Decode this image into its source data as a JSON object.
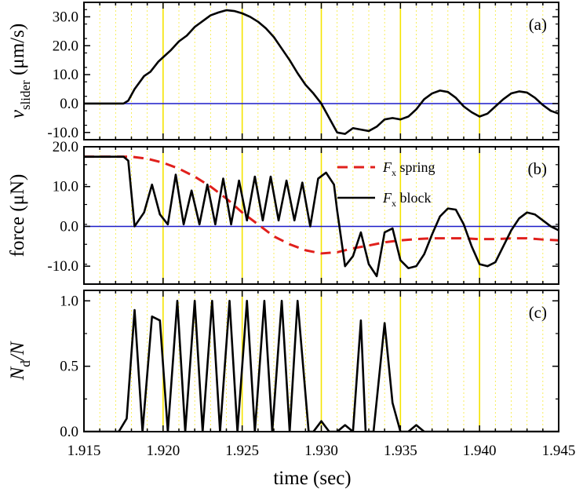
{
  "chart_data": {
    "type": "line",
    "xlabel": "time (sec)",
    "x_ticks": [
      "1.915",
      "1.920",
      "1.925",
      "1.930",
      "1.935",
      "1.940",
      "1.945"
    ],
    "xlim": [
      1.915,
      1.945
    ],
    "panels": [
      {
        "tag": "(a)",
        "ylabel": {
          "main": "v",
          "sub": "slider",
          "unit": "(μm/s)"
        },
        "ylim": [
          -12.5,
          35.0
        ],
        "y_ticks": [
          30.0,
          20.0,
          10.0,
          0.0,
          -10.0
        ],
        "y_tick_labels": [
          "30.0",
          "20.0",
          "10.0",
          "0.0",
          "-10.0"
        ],
        "zero_line": 0.0,
        "series": [
          {
            "color": "#000000",
            "style": "solid",
            "x": [
              1.915,
              1.9175,
              1.9178,
              1.9182,
              1.9188,
              1.9192,
              1.9197,
              1.92,
              1.9205,
              1.921,
              1.9215,
              1.922,
              1.9225,
              1.923,
              1.9235,
              1.924,
              1.9245,
              1.925,
              1.9255,
              1.926,
              1.9265,
              1.927,
              1.9275,
              1.928,
              1.9285,
              1.929,
              1.9295,
              1.93,
              1.9305,
              1.931,
              1.9315,
              1.932,
              1.9325,
              1.933,
              1.9335,
              1.934,
              1.9345,
              1.935,
              1.9355,
              1.936,
              1.9365,
              1.937,
              1.9375,
              1.938,
              1.9385,
              1.939,
              1.9395,
              1.94,
              1.9405,
              1.941,
              1.9415,
              1.942,
              1.9425,
              1.943,
              1.9435,
              1.944,
              1.9445,
              1.945
            ],
            "y": [
              0.0,
              0.0,
              1.0,
              5.0,
              9.5,
              11.0,
              14.5,
              16.0,
              18.5,
              21.5,
              23.5,
              26.5,
              28.5,
              30.5,
              31.5,
              32.3,
              32.0,
              31.2,
              30.0,
              28.3,
              26.0,
              23.0,
              19.0,
              15.0,
              10.5,
              6.5,
              3.5,
              0.0,
              -5.0,
              -10.0,
              -10.5,
              -8.5,
              -9.0,
              -9.5,
              -8.0,
              -5.5,
              -5.0,
              -5.5,
              -4.5,
              -2.0,
              1.5,
              3.5,
              4.5,
              4.0,
              2.0,
              -1.0,
              -3.0,
              -4.5,
              -3.5,
              -1.0,
              1.5,
              3.5,
              4.2,
              3.8,
              2.0,
              -0.5,
              -2.5,
              -3.5
            ]
          }
        ]
      },
      {
        "tag": "(b)",
        "ylabel": {
          "main": "force (μN)"
        },
        "ylim": [
          -14.5,
          20.0
        ],
        "y_ticks": [
          20.0,
          10.0,
          0.0,
          -10.0
        ],
        "y_tick_labels": [
          "20.0",
          "10.0",
          "0.0",
          "-10.0"
        ],
        "zero_line": 0.0,
        "legend": [
          {
            "label_main": "F",
            "label_sub": "x",
            "label_rest": " spring",
            "color": "#e0201c",
            "style": "dashed"
          },
          {
            "label_main": "F",
            "label_sub": "x",
            "label_rest": " block",
            "color": "#000000",
            "style": "solid"
          }
        ],
        "series": [
          {
            "name": "F x spring",
            "color": "#e0201c",
            "style": "dashed",
            "x": [
              1.915,
              1.918,
              1.919,
              1.92,
              1.921,
              1.922,
              1.923,
              1.924,
              1.925,
              1.926,
              1.927,
              1.928,
              1.929,
              1.93,
              1.931,
              1.932,
              1.933,
              1.934,
              1.935,
              1.936,
              1.937,
              1.938,
              1.939,
              1.94,
              1.941,
              1.942,
              1.943,
              1.944,
              1.945
            ],
            "y": [
              17.5,
              17.5,
              17.0,
              16.0,
              14.5,
              12.5,
              10.0,
              7.0,
              3.5,
              0.5,
              -2.5,
              -4.5,
              -6.0,
              -6.8,
              -6.5,
              -5.5,
              -4.8,
              -4.0,
              -3.5,
              -3.2,
              -3.0,
              -3.0,
              -3.0,
              -3.2,
              -3.2,
              -3.0,
              -3.0,
              -3.3,
              -3.5
            ]
          },
          {
            "name": "F x block",
            "color": "#000000",
            "style": "solid",
            "x": [
              1.915,
              1.9175,
              1.9178,
              1.9182,
              1.9188,
              1.9193,
              1.9198,
              1.9203,
              1.9208,
              1.9213,
              1.9218,
              1.9223,
              1.9228,
              1.9233,
              1.9238,
              1.9243,
              1.9248,
              1.9253,
              1.9258,
              1.9263,
              1.9268,
              1.9273,
              1.9278,
              1.9283,
              1.9288,
              1.9293,
              1.9298,
              1.9303,
              1.9308,
              1.931,
              1.9315,
              1.932,
              1.9325,
              1.933,
              1.9335,
              1.934,
              1.9345,
              1.935,
              1.9355,
              1.936,
              1.9365,
              1.937,
              1.9375,
              1.938,
              1.9385,
              1.939,
              1.9395,
              1.94,
              1.9405,
              1.941,
              1.9415,
              1.942,
              1.9425,
              1.943,
              1.9435,
              1.944,
              1.9445,
              1.945
            ],
            "y": [
              17.5,
              17.5,
              16.5,
              0.0,
              3.5,
              10.5,
              3.0,
              0.5,
              13.0,
              0.5,
              9.0,
              0.5,
              10.5,
              0.5,
              12.0,
              0.5,
              11.5,
              1.5,
              12.5,
              1.5,
              12.5,
              1.5,
              11.5,
              1.5,
              11.0,
              0.0,
              12.0,
              13.5,
              10.5,
              4.0,
              -10.0,
              -7.5,
              -1.5,
              -9.5,
              -12.5,
              -1.5,
              -0.5,
              -8.5,
              -10.5,
              -10.0,
              -7.0,
              -2.0,
              2.5,
              4.5,
              4.2,
              0.5,
              -5.0,
              -9.5,
              -10.0,
              -9.0,
              -5.0,
              -1.0,
              2.0,
              3.5,
              3.0,
              1.5,
              0.0,
              -1.0
            ]
          }
        ]
      },
      {
        "tag": "(c)",
        "ylabel": {
          "main": "N",
          "sub": "d",
          "rest": "/N"
        },
        "ylim": [
          0.0,
          1.08
        ],
        "y_ticks": [
          1.0,
          0.5,
          0.0
        ],
        "y_tick_labels": [
          "1.0",
          "0.5",
          "0.0"
        ],
        "zero_line": null,
        "series": [
          {
            "color": "#000000",
            "style": "solid",
            "x": [
              1.915,
              1.9172,
              1.9177,
              1.9182,
              1.9187,
              1.9193,
              1.9198,
              1.9203,
              1.9209,
              1.9214,
              1.922,
              1.9225,
              1.9231,
              1.9236,
              1.9242,
              1.9247,
              1.9253,
              1.9258,
              1.9264,
              1.9269,
              1.9275,
              1.928,
              1.9285,
              1.9292,
              1.9295,
              1.93,
              1.9305,
              1.931,
              1.9315,
              1.932,
              1.9325,
              1.9328,
              1.9333,
              1.934,
              1.9345,
              1.935,
              1.9355,
              1.936,
              1.9365,
              1.937,
              1.9375,
              1.945
            ],
            "y": [
              0.0,
              0.0,
              0.1,
              0.93,
              0.0,
              0.88,
              0.85,
              0.0,
              1.0,
              0.0,
              1.0,
              0.0,
              1.0,
              0.0,
              1.0,
              0.0,
              1.0,
              0.0,
              1.0,
              0.0,
              1.0,
              0.0,
              1.0,
              0.0,
              0.0,
              0.08,
              0.0,
              0.0,
              0.05,
              0.0,
              0.85,
              0.0,
              0.0,
              0.83,
              0.22,
              0.0,
              0.0,
              0.05,
              0.0,
              0.0,
              0.0,
              0.0
            ]
          }
        ]
      }
    ],
    "yellow_major_x": [
      1.92,
      1.925,
      1.93,
      1.935,
      1.94
    ],
    "yellow_minor_step": 0.001,
    "grid": false,
    "zero_line_color": "#1c1cc8",
    "highlight_color": "#f5e400"
  }
}
